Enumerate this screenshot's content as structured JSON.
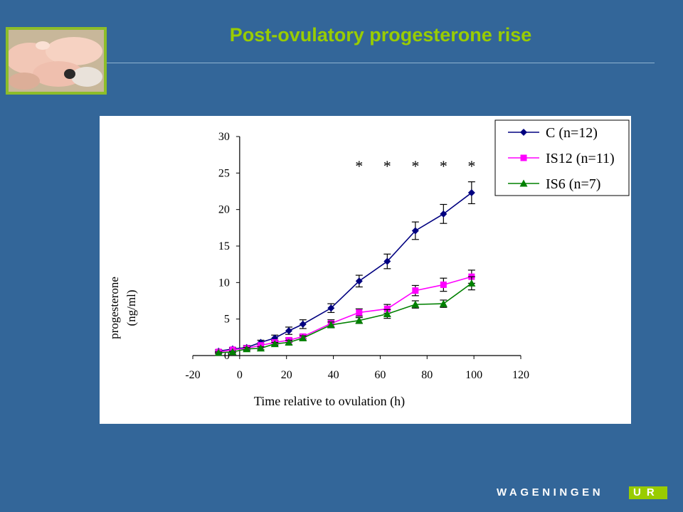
{
  "slide": {
    "title": "Post-ovulatory progesterone rise",
    "logo_main": "WAGENINGEN",
    "logo_accent": "UR",
    "accent_color": "#99cc00",
    "background_color": "#336699"
  },
  "photo": {
    "icon": "piglets-photo"
  },
  "chart_data": {
    "type": "line",
    "title": "",
    "xlabel": "Time relative to ovulation (h)",
    "ylabel": "progesterone (ng/ml)",
    "ylabel_lines": [
      "progesterone",
      "(ng/ml)"
    ],
    "xlim": [
      -20,
      120
    ],
    "ylim": [
      0,
      30
    ],
    "xticks": [
      "-20",
      "0",
      "20",
      "40",
      "60",
      "80",
      "100",
      "120"
    ],
    "yticks": [
      "0",
      "5",
      "10",
      "15",
      "20",
      "25",
      "30"
    ],
    "grid": false,
    "legend_position": "top-right",
    "significance_markers": [
      {
        "x": 51,
        "label": "*"
      },
      {
        "x": 63,
        "label": "*"
      },
      {
        "x": 75,
        "label": "*"
      },
      {
        "x": 87,
        "label": "*"
      },
      {
        "x": 99,
        "label": "*"
      }
    ],
    "series": [
      {
        "name": "C (n=12)",
        "color": "#000080",
        "marker": "diamond",
        "x": [
          -9,
          -3,
          3,
          9,
          15,
          21,
          27,
          39,
          51,
          63,
          75,
          87,
          99
        ],
        "y": [
          0.6,
          0.9,
          1.1,
          1.8,
          2.4,
          3.4,
          4.3,
          6.5,
          10.2,
          12.9,
          17.1,
          19.4,
          22.3
        ],
        "err": [
          0.2,
          0.2,
          0.3,
          0.3,
          0.4,
          0.5,
          0.6,
          0.6,
          0.8,
          1.0,
          1.2,
          1.3,
          1.5
        ]
      },
      {
        "name": "IS12 (n=11)",
        "color": "#ff00ff",
        "marker": "square",
        "x": [
          -9,
          -3,
          3,
          9,
          15,
          21,
          27,
          39,
          51,
          63,
          75,
          87,
          99
        ],
        "y": [
          0.5,
          0.8,
          1.0,
          1.4,
          1.8,
          2.1,
          2.6,
          4.4,
          5.9,
          6.4,
          8.9,
          9.7,
          10.8
        ],
        "err": [
          0.1,
          0.2,
          0.2,
          0.2,
          0.3,
          0.3,
          0.3,
          0.5,
          0.5,
          0.6,
          0.7,
          0.9,
          0.9
        ]
      },
      {
        "name": "IS6 (n=7)",
        "color": "#008000",
        "marker": "triangle",
        "x": [
          -9,
          -3,
          3,
          9,
          15,
          21,
          27,
          39,
          51,
          63,
          75,
          87,
          99
        ],
        "y": [
          0.4,
          0.5,
          0.9,
          1.0,
          1.6,
          1.8,
          2.4,
          4.2,
          4.8,
          5.7,
          7.0,
          7.1,
          9.9
        ],
        "err": [
          0.1,
          0.1,
          0.2,
          0.2,
          0.2,
          0.3,
          0.3,
          0.4,
          0.4,
          0.6,
          0.5,
          0.5,
          0.9
        ]
      }
    ]
  }
}
